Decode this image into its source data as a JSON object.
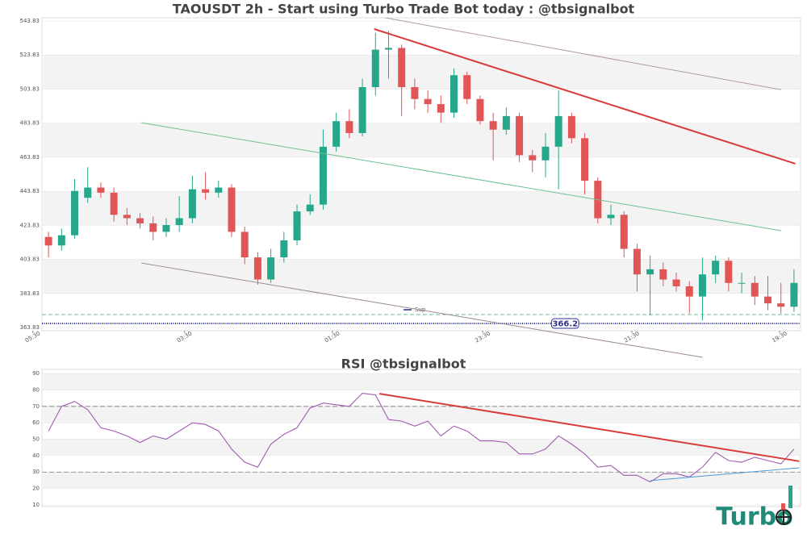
{
  "chart_data": [
    {
      "type": "candlestick",
      "title": "TAOUSDT 2h - Start using Turbo Trade Bot today : @tbsignalbot",
      "open": [
        417,
        412,
        418,
        440,
        446,
        443,
        430,
        428,
        425,
        420,
        424,
        428,
        445,
        443,
        446,
        420,
        405,
        392,
        405,
        415,
        432,
        436,
        470,
        485,
        478,
        505,
        527,
        528,
        505,
        498,
        495,
        490,
        512,
        498,
        485,
        480,
        488,
        465,
        462,
        470,
        488,
        475,
        450,
        428,
        430,
        410,
        395,
        398,
        392,
        388,
        382,
        395,
        403,
        390,
        390,
        382,
        378,
        376
      ],
      "high": [
        420,
        422,
        451,
        458,
        449,
        446,
        434,
        431,
        429,
        428,
        441,
        453,
        455,
        450,
        448,
        423,
        408,
        410,
        420,
        436,
        442,
        480,
        490,
        492,
        510,
        537,
        538,
        530,
        510,
        503,
        500,
        516,
        514,
        500,
        490,
        493,
        490,
        468,
        478,
        503,
        490,
        478,
        452,
        436,
        432,
        413,
        406,
        402,
        396,
        391,
        405,
        406,
        405,
        396,
        394,
        394,
        390,
        398
      ],
      "low": [
        405,
        409,
        416,
        437,
        440,
        426,
        424,
        422,
        415,
        417,
        420,
        425,
        439,
        440,
        417,
        401,
        389,
        390,
        402,
        412,
        430,
        433,
        467,
        475,
        476,
        500,
        510,
        488,
        492,
        490,
        484,
        487,
        495,
        483,
        462,
        477,
        461,
        455,
        452,
        445,
        472,
        442,
        425,
        424,
        405,
        385,
        371,
        388,
        385,
        372,
        368,
        390,
        385,
        384,
        377,
        374,
        372,
        373
      ],
      "close": [
        412,
        418,
        444,
        446,
        443,
        430,
        428,
        425,
        420,
        424,
        428,
        445,
        443,
        446,
        420,
        405,
        392,
        405,
        415,
        432,
        436,
        470,
        485,
        478,
        505,
        527,
        528,
        505,
        498,
        495,
        490,
        512,
        498,
        485,
        480,
        488,
        465,
        462,
        470,
        488,
        475,
        450,
        428,
        430,
        410,
        395,
        398,
        392,
        388,
        382,
        395,
        403,
        390,
        390,
        382,
        378,
        376,
        390
      ],
      "up_color": "#26a68a",
      "down_color": "#e05555",
      "xlim": [
        -0.5,
        57.5
      ],
      "xticks": [
        {
          "value": -1.2,
          "label": "05:30"
        },
        {
          "value": 10.4,
          "label": "03:30"
        },
        {
          "value": 21.7,
          "label": "01:30"
        },
        {
          "value": 33.2,
          "label": "23:30"
        },
        {
          "value": 44.6,
          "label": "21:30"
        },
        {
          "value": 55.9,
          "label": "19:30"
        }
      ],
      "ylim": [
        361.94,
        545.73
      ],
      "yticks": [
        363.83,
        383.83,
        403.83,
        423.83,
        443.83,
        463.83,
        483.83,
        503.83,
        523.83,
        543.83
      ],
      "trend_lines": [
        {
          "color": "#d93a3a",
          "points": [
            [
              24.9,
              539.1
            ],
            [
              57.1,
              460.0
            ]
          ]
        },
        {
          "color": "#b09aa0",
          "points": [
            [
              24.4,
              547.6
            ],
            [
              56.0,
              503.5
            ]
          ]
        },
        {
          "color": "#6fc08f",
          "points": [
            [
              7.1,
              484.1
            ],
            [
              56.0,
              420.7
            ]
          ]
        },
        {
          "color": "#a08890",
          "points": [
            [
              7.1,
              401.7
            ],
            [
              50.0,
              346.3
            ]
          ]
        }
      ],
      "levels": [
        {
          "name": "Sup",
          "value": 371.4,
          "color": "#6fb89a"
        },
        {
          "value": 366.2,
          "color": "#2b2f8f"
        }
      ]
    },
    {
      "type": "line",
      "title": "RSI @tbsignalbot",
      "values": [
        55,
        70,
        73,
        68,
        57,
        55,
        52,
        48,
        52,
        50,
        55,
        60,
        59,
        55,
        44,
        36,
        33,
        47,
        53,
        57,
        69,
        72,
        71,
        70,
        78,
        77,
        62,
        61,
        58,
        61,
        52,
        58,
        55,
        49,
        49,
        48,
        41,
        41,
        44,
        52,
        47,
        41,
        33,
        34,
        28,
        28,
        24,
        29,
        29,
        27,
        33,
        42,
        37,
        36,
        39,
        37,
        35,
        44
      ],
      "color": "#a05cb0",
      "xlim": [
        -0.5,
        57.5
      ],
      "ylim": [
        9,
        92.5
      ],
      "yticks": [
        10,
        20,
        30,
        40,
        50,
        60,
        70,
        80,
        90
      ],
      "ref_lines": [
        70,
        30
      ],
      "trend_lines": [
        {
          "color": "#d93a3a",
          "points": [
            [
              25.3,
              77.7
            ],
            [
              57.4,
              36.6
            ]
          ]
        },
        {
          "color": "#4a9ad8",
          "points": [
            [
              46.0,
              24.8
            ],
            [
              57.4,
              32.6
            ]
          ]
        }
      ],
      "watermark": "Turbo"
    }
  ]
}
